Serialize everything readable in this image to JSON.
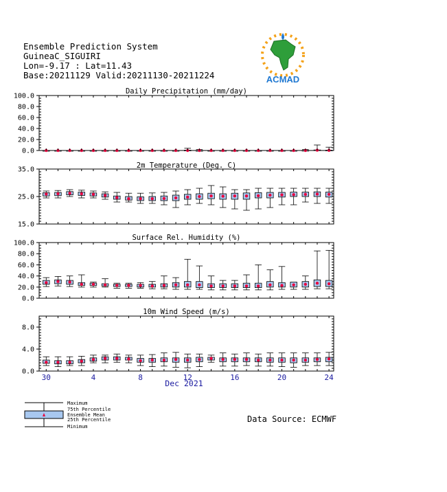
{
  "header": {
    "line1": "Ensemble Prediction System",
    "line2": "GuineaC_SIGUIRI",
    "line3": "Lon=-9.17 : Lat=11.43",
    "line4": "Base:20211129 Valid:20211130-20211224"
  },
  "logo": {
    "text": "ACMAD"
  },
  "source": "Data Source: ECMWF",
  "legend": {
    "maximum": "Maximum",
    "p75": "75th Percentile",
    "mean": "Ensemble Mean",
    "p25": "25th Percentile",
    "minimum": "Minimum"
  },
  "colors": {
    "box_fill": "#a8c8f0",
    "mean_marker": "#e8003c",
    "axis_text": "#1a1aa0"
  },
  "chart_data": [
    {
      "type": "box",
      "title": "Daily Precipitation (mm/day)",
      "ylim": [
        0,
        100
      ],
      "yticks": [
        "0.0",
        "20.0",
        "40.0",
        "60.0",
        "80.0",
        "100.0"
      ],
      "ytick_values": [
        0,
        20,
        40,
        60,
        80,
        100
      ],
      "min": [
        0,
        0,
        0,
        0,
        0,
        0,
        0,
        0,
        0,
        0,
        0,
        0,
        0,
        0,
        0,
        0,
        0,
        0,
        0,
        0,
        0,
        0,
        0,
        0,
        0
      ],
      "p25": [
        0,
        0,
        0,
        0,
        0,
        0,
        0,
        0,
        0,
        0,
        0,
        0,
        0,
        0,
        0,
        0,
        0,
        0,
        0,
        0,
        0,
        0,
        0,
        0,
        0
      ],
      "mean": [
        0,
        0,
        0,
        0,
        0,
        0,
        0,
        0,
        0,
        0,
        0,
        0,
        0,
        0,
        0,
        0,
        0,
        0,
        0,
        0,
        0,
        0,
        0,
        0.5,
        0.3
      ],
      "p75": [
        0,
        0,
        0,
        0,
        0,
        0,
        0,
        0,
        0,
        0,
        0,
        0,
        0.5,
        0,
        0,
        0,
        0,
        0,
        0,
        0,
        0,
        0,
        0.2,
        1,
        0.5
      ],
      "max": [
        0,
        0,
        0,
        0,
        0,
        0,
        0,
        0,
        0,
        0,
        0,
        0,
        4,
        2,
        0,
        0,
        0,
        0,
        0,
        0,
        0,
        0,
        2,
        10,
        6
      ]
    },
    {
      "type": "box",
      "title": "2m Temperature (Deg. C)",
      "ylim": [
        15,
        35
      ],
      "yticks": [
        "15.0",
        "25.0",
        "35.0"
      ],
      "ytick_values": [
        15,
        25,
        35
      ],
      "min": [
        24.5,
        24.5,
        25,
        24.5,
        24.5,
        24,
        23,
        23,
        22.5,
        22.5,
        22,
        21,
        22,
        22.5,
        22,
        21,
        20.5,
        20,
        20.5,
        21,
        22,
        22,
        23,
        22.5,
        22.5
      ],
      "p25": [
        25.2,
        25.3,
        25.6,
        25.4,
        25.2,
        24.8,
        24,
        23.7,
        23.5,
        23.5,
        23.5,
        23.5,
        24,
        24,
        24.2,
        24,
        24,
        24,
        24.5,
        24.5,
        24.8,
        25,
        25,
        25,
        24.8
      ],
      "mean": [
        25.9,
        26,
        26.2,
        26,
        25.8,
        25.4,
        24.6,
        24.2,
        24.2,
        24.2,
        24.3,
        24.5,
        24.8,
        25,
        25.2,
        25.1,
        25.2,
        25.2,
        25.3,
        25.5,
        25.6,
        25.7,
        25.8,
        25.9,
        25.8
      ],
      "p75": [
        26.4,
        26.5,
        26.8,
        26.6,
        26.3,
        26,
        25.2,
        25,
        24.9,
        25,
        25.2,
        25.5,
        25.8,
        26,
        26.2,
        26,
        26.2,
        26.3,
        26.4,
        26.5,
        26.5,
        26.6,
        26.6,
        26.7,
        26.6
      ],
      "max": [
        27,
        27.2,
        27.5,
        27.3,
        27,
        26.7,
        26.5,
        26.2,
        26.2,
        26.3,
        26.5,
        27,
        27.5,
        28,
        29,
        28.5,
        27.5,
        27.5,
        28,
        28,
        28,
        28,
        28,
        28,
        28
      ]
    },
    {
      "type": "box",
      "title": "Surface Rel. Humidity (%)",
      "ylim": [
        0,
        100
      ],
      "yticks": [
        "0.0",
        "20.0",
        "40.0",
        "60.0",
        "80.0",
        "100.0"
      ],
      "ytick_values": [
        0,
        20,
        40,
        60,
        80,
        100
      ],
      "min": [
        21,
        22,
        21,
        20,
        20,
        20,
        18,
        18,
        18,
        17,
        17,
        16,
        16,
        16,
        15,
        15,
        15,
        15,
        15,
        15,
        16,
        16,
        16,
        17,
        17
      ],
      "p25": [
        25,
        26,
        25,
        23,
        23,
        22,
        21,
        21,
        20,
        20,
        20,
        20,
        20,
        19,
        19,
        19,
        19,
        19,
        19,
        20,
        20,
        20,
        20,
        21,
        21
      ],
      "mean": [
        28,
        30,
        29,
        25,
        25,
        24,
        23,
        23,
        23,
        22,
        23,
        24,
        24,
        24,
        22,
        22,
        22,
        22,
        22,
        24,
        23,
        24,
        25,
        27,
        26
      ],
      "p75": [
        32,
        33,
        32,
        28,
        27,
        26,
        25,
        25,
        25,
        25,
        26,
        28,
        30,
        30,
        26,
        26,
        26,
        27,
        27,
        30,
        28,
        29,
        30,
        33,
        32
      ],
      "max": [
        37,
        39,
        40,
        42,
        29,
        35,
        27,
        27,
        28,
        30,
        40,
        37,
        70,
        58,
        40,
        32,
        32,
        42,
        60,
        51,
        57,
        28,
        40,
        85,
        86
      ]
    },
    {
      "type": "box",
      "title": "10m Wind Speed (m/s)",
      "ylim": [
        0,
        10
      ],
      "yticks": [
        "0.0",
        "4.0",
        "8.0"
      ],
      "ytick_values": [
        0,
        4,
        8
      ],
      "x_tick_labels": [
        "30",
        "4",
        "8",
        "12",
        "16",
        "20",
        "24"
      ],
      "x_tick_indices": [
        0,
        4,
        8,
        12,
        16,
        20,
        24
      ],
      "month_label": "Dec 2021",
      "min": [
        1.0,
        0.8,
        1.0,
        1.0,
        1.5,
        1.5,
        1.6,
        1.5,
        1.0,
        0.8,
        0.9,
        0.7,
        0.6,
        0.8,
        1.6,
        0.9,
        0.9,
        1.0,
        0.9,
        0.9,
        0.8,
        0.7,
        1.0,
        1.0,
        1.0
      ],
      "p25": [
        1.4,
        1.3,
        1.3,
        1.5,
        1.8,
        2.0,
        2.0,
        2.0,
        1.6,
        1.6,
        1.7,
        1.6,
        1.6,
        1.7,
        2.0,
        1.7,
        1.7,
        1.7,
        1.7,
        1.6,
        1.6,
        1.5,
        1.6,
        1.7,
        1.7
      ],
      "mean": [
        1.6,
        1.6,
        1.6,
        1.8,
        2.1,
        2.3,
        2.3,
        2.2,
        1.9,
        2.0,
        2.0,
        2.1,
        2.0,
        2.1,
        2.3,
        2.1,
        2.1,
        2.1,
        2.0,
        2.0,
        2.0,
        2.0,
        2.0,
        2.1,
        2.2
      ],
      "p75": [
        2.0,
        1.9,
        1.9,
        2.1,
        2.4,
        2.6,
        2.6,
        2.5,
        2.3,
        2.3,
        2.4,
        2.4,
        2.4,
        2.5,
        2.5,
        2.4,
        2.4,
        2.4,
        2.4,
        2.4,
        2.4,
        2.4,
        2.4,
        2.4,
        2.5
      ],
      "max": [
        2.6,
        2.6,
        2.6,
        2.7,
        2.9,
        2.9,
        3.1,
        2.9,
        2.9,
        3.0,
        3.3,
        3.4,
        3.1,
        3.1,
        2.9,
        3.3,
        3.1,
        3.3,
        3.1,
        3.3,
        3.3,
        3.3,
        3.3,
        3.3,
        3.4
      ]
    }
  ]
}
